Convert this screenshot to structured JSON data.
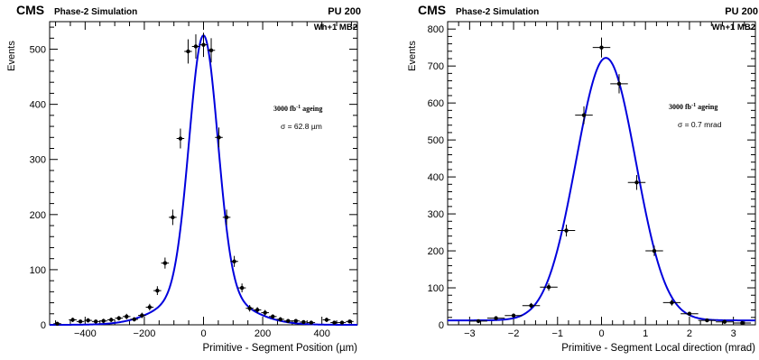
{
  "chart_data": [
    {
      "type": "scatter",
      "header": {
        "experiment": "CMS",
        "status": "Phase-2 Simulation",
        "pileup": "PU 200"
      },
      "station": "Wh+1 MB2",
      "ageing_label": "3000 fb",
      "ageing_exponent": "-1",
      "ageing_suffix": "ageing",
      "sigma_label": "σ = 62.8 µm",
      "xlabel": "Primitive - Segment Position (µm)",
      "ylabel": "Events",
      "xlim": [
        -520,
        520
      ],
      "ylim": [
        0,
        550
      ],
      "xticks": [
        -400,
        -200,
        0,
        200,
        400
      ],
      "yticks": [
        0,
        100,
        200,
        300,
        400,
        500
      ],
      "bin_half_width": 13,
      "fit": {
        "function": "double-gaussian",
        "mean": 0,
        "narrow": {
          "amplitude": 463,
          "sigma": 48
        },
        "wide": {
          "amplitude": 62,
          "sigma": 125
        }
      },
      "points": [
        {
          "x": -494,
          "y": 2,
          "err": 3
        },
        {
          "x": -442,
          "y": 9,
          "err": 4
        },
        {
          "x": -416,
          "y": 6,
          "err": 3
        },
        {
          "x": -390,
          "y": 8,
          "err": 4
        },
        {
          "x": -364,
          "y": 6,
          "err": 3
        },
        {
          "x": -338,
          "y": 7,
          "err": 4
        },
        {
          "x": -312,
          "y": 9,
          "err": 4
        },
        {
          "x": -286,
          "y": 12,
          "err": 4
        },
        {
          "x": -260,
          "y": 15,
          "err": 5
        },
        {
          "x": -234,
          "y": 10,
          "err": 4
        },
        {
          "x": -208,
          "y": 17,
          "err": 5
        },
        {
          "x": -182,
          "y": 32,
          "err": 6
        },
        {
          "x": -156,
          "y": 62,
          "err": 8
        },
        {
          "x": -130,
          "y": 112,
          "err": 10
        },
        {
          "x": -104,
          "y": 195,
          "err": 14
        },
        {
          "x": -78,
          "y": 338,
          "err": 18
        },
        {
          "x": -52,
          "y": 496,
          "err": 22
        },
        {
          "x": -26,
          "y": 505,
          "err": 22
        },
        {
          "x": 0,
          "y": 508,
          "err": 22
        },
        {
          "x": 26,
          "y": 498,
          "err": 22
        },
        {
          "x": 52,
          "y": 340,
          "err": 18
        },
        {
          "x": 78,
          "y": 195,
          "err": 14
        },
        {
          "x": 104,
          "y": 115,
          "err": 10
        },
        {
          "x": 130,
          "y": 67,
          "err": 8
        },
        {
          "x": 156,
          "y": 30,
          "err": 6
        },
        {
          "x": 182,
          "y": 27,
          "err": 5
        },
        {
          "x": 208,
          "y": 22,
          "err": 5
        },
        {
          "x": 234,
          "y": 15,
          "err": 4
        },
        {
          "x": 260,
          "y": 10,
          "err": 4
        },
        {
          "x": 286,
          "y": 7,
          "err": 3
        },
        {
          "x": 312,
          "y": 7,
          "err": 3
        },
        {
          "x": 338,
          "y": 5,
          "err": 3
        },
        {
          "x": 364,
          "y": 4,
          "err": 3
        },
        {
          "x": 416,
          "y": 9,
          "err": 4
        },
        {
          "x": 442,
          "y": 4,
          "err": 3
        },
        {
          "x": 468,
          "y": 4,
          "err": 3
        },
        {
          "x": 494,
          "y": 6,
          "err": 3
        }
      ]
    },
    {
      "type": "scatter",
      "header": {
        "experiment": "CMS",
        "status": "Phase-2 Simulation",
        "pileup": "PU 200"
      },
      "station": "Wh+1 MB2",
      "ageing_label": "3000 fb",
      "ageing_exponent": "-1",
      "ageing_suffix": "ageing",
      "sigma_label": "σ = 0.7 mrad",
      "xlabel": "Primitive - Segment Local direction (mrad)",
      "ylabel": "Events",
      "xlim": [
        -3.5,
        3.5
      ],
      "ylim": [
        0,
        820
      ],
      "xticks": [
        -3,
        -2,
        -1,
        0,
        1,
        2,
        3
      ],
      "yticks": [
        0,
        100,
        200,
        300,
        400,
        500,
        600,
        700,
        800
      ],
      "bin_half_width": 0.2,
      "fit": {
        "function": "gaussian",
        "mean": 0.1,
        "amplitude": 710,
        "sigma": 0.68,
        "baseline": 12
      },
      "points": [
        {
          "x": -2.8,
          "y": 10,
          "err": 3
        },
        {
          "x": -2.4,
          "y": 18,
          "err": 4
        },
        {
          "x": -2.0,
          "y": 25,
          "err": 5
        },
        {
          "x": -1.6,
          "y": 52,
          "err": 7
        },
        {
          "x": -1.2,
          "y": 102,
          "err": 10
        },
        {
          "x": -0.8,
          "y": 255,
          "err": 16
        },
        {
          "x": -0.4,
          "y": 567,
          "err": 24
        },
        {
          "x": 0.0,
          "y": 750,
          "err": 27
        },
        {
          "x": 0.4,
          "y": 652,
          "err": 26
        },
        {
          "x": 0.8,
          "y": 385,
          "err": 20
        },
        {
          "x": 1.2,
          "y": 200,
          "err": 14
        },
        {
          "x": 1.6,
          "y": 60,
          "err": 8
        },
        {
          "x": 2.0,
          "y": 30,
          "err": 5
        },
        {
          "x": 2.4,
          "y": 12,
          "err": 3
        },
        {
          "x": 2.8,
          "y": 8,
          "err": 3
        },
        {
          "x": 3.2,
          "y": 5,
          "err": 2
        }
      ]
    }
  ]
}
